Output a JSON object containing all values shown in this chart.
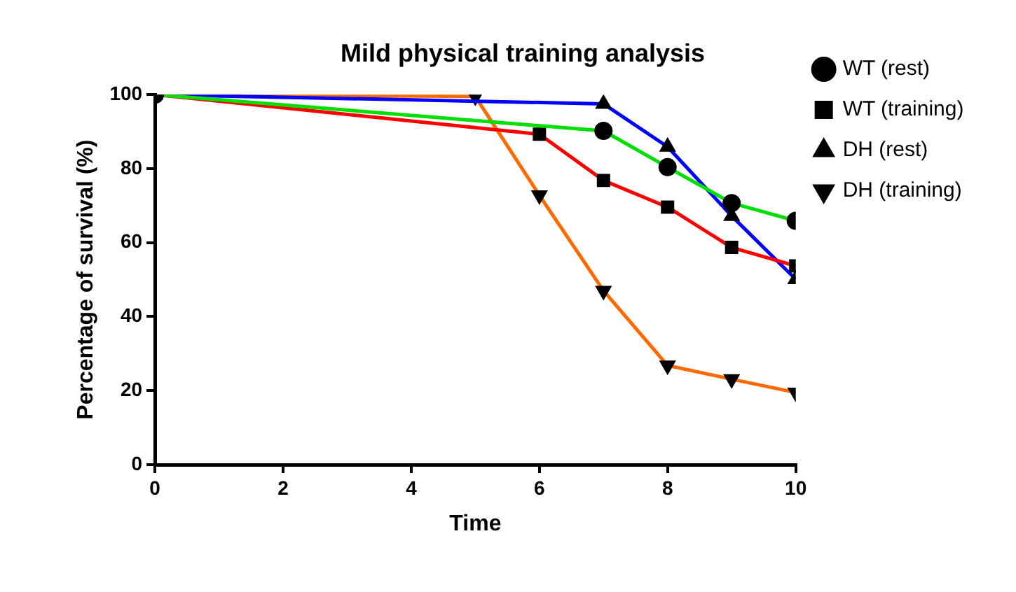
{
  "chart_data": {
    "type": "line",
    "title": "Mild physical training analysis",
    "xlabel": "Time",
    "ylabel": "Percentage of survival (%)",
    "xlim": [
      0,
      10
    ],
    "xticks": [
      0,
      2,
      4,
      6,
      8,
      10
    ],
    "ylim": [
      0,
      100
    ],
    "yticks": [
      0,
      20,
      40,
      60,
      80,
      100
    ],
    "grid": false,
    "legend": "right",
    "line_style": "solid",
    "series": [
      {
        "name": "WT (rest)",
        "color": "#00e000",
        "marker": "circle",
        "x": [
          0,
          7,
          8,
          9,
          10
        ],
        "values": [
          100,
          90.2,
          80.4,
          70.7,
          65.9
        ]
      },
      {
        "name": "WT (training)",
        "color": "#ff0000",
        "marker": "square",
        "x": [
          0,
          6,
          7,
          8,
          9,
          10
        ],
        "values": [
          100,
          89.3,
          76.8,
          69.6,
          58.7,
          53.7
        ]
      },
      {
        "name": "DH (rest)",
        "color": "#0000ff",
        "marker": "triangle",
        "x": [
          0,
          7,
          8,
          9,
          10
        ],
        "values": [
          100,
          97.5,
          85.9,
          67.2,
          50.1
        ]
      },
      {
        "name": "DH (training)",
        "color": "#ff6a00",
        "marker": "triangle_down",
        "x": [
          0,
          5,
          6,
          7,
          8,
          9,
          10
        ],
        "values": [
          100,
          99.5,
          72.8,
          47,
          26.8,
          23.1,
          19.5
        ]
      }
    ]
  }
}
